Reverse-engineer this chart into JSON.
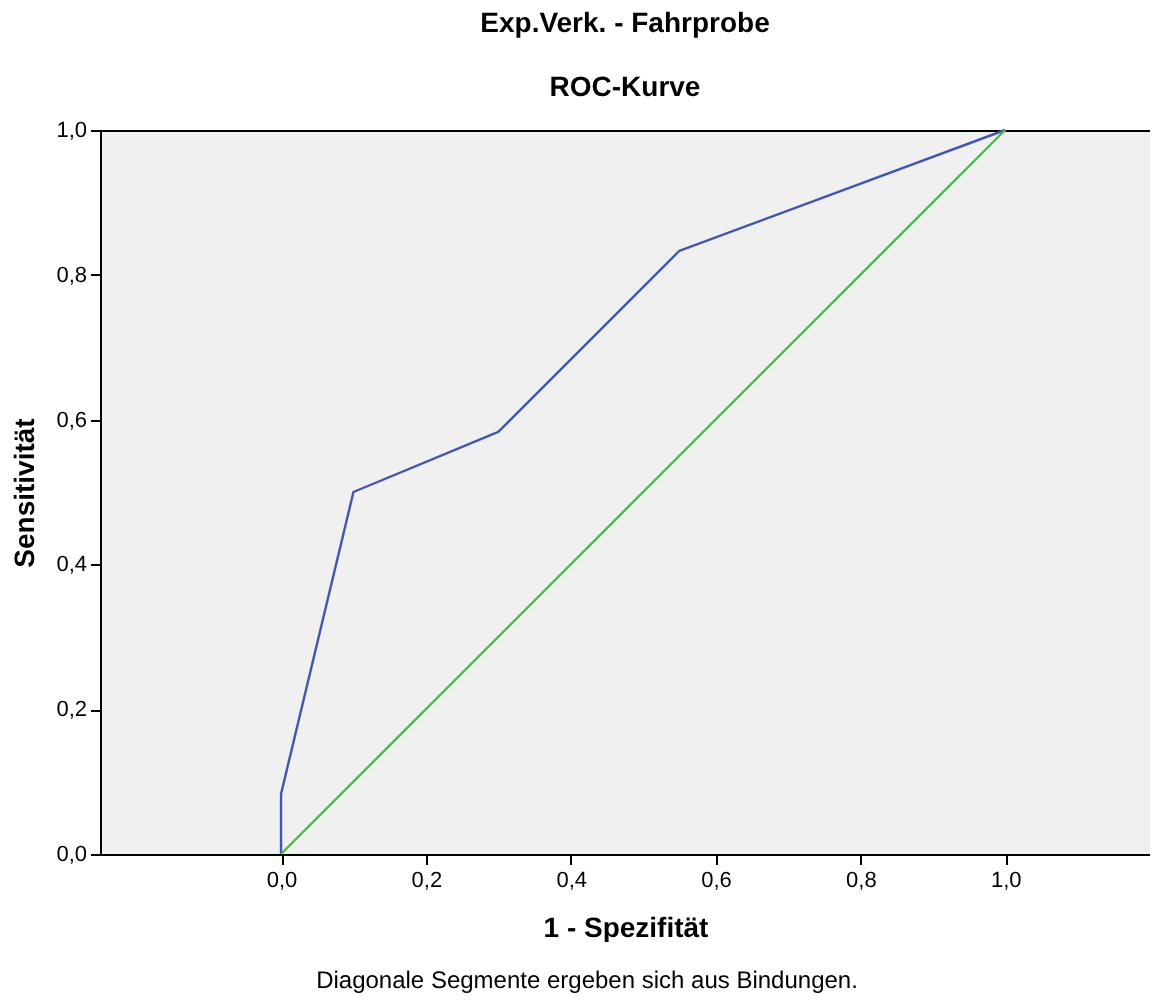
{
  "chart_data": {
    "type": "line",
    "title": "Exp.Verk. - Fahrprobe",
    "subtitle": "ROC-Kurve",
    "xlabel": "1 - Spezifität",
    "ylabel": "Sensitivität",
    "series": [
      {
        "color": "#4355b0",
        "x": [
          0,
          0,
          0.1,
          0.3,
          0.55,
          1
        ],
        "values": [
          0,
          0.083,
          0.5,
          0.583,
          0.833,
          1
        ]
      },
      {
        "color": "#3cc43c",
        "x": [
          0,
          1
        ],
        "values": [
          0,
          1
        ]
      }
    ],
    "xlim": [
      -0.25,
      1.2
    ],
    "ylim": [
      0,
      1
    ],
    "xticks": [
      {
        "value": 0,
        "label": "0,0"
      },
      {
        "value": 0.2,
        "label": "0,2"
      },
      {
        "value": 0.4,
        "label": "0,4"
      },
      {
        "value": 0.6,
        "label": "0,6"
      },
      {
        "value": 0.8,
        "label": "0,8"
      },
      {
        "value": 1,
        "label": "1,0"
      }
    ],
    "yticks": [
      {
        "value": 0,
        "label": "0,0"
      },
      {
        "value": 0.2,
        "label": "0,2"
      },
      {
        "value": 0.4,
        "label": "0,4"
      },
      {
        "value": 0.6,
        "label": "0,6"
      },
      {
        "value": 0.8,
        "label": "0,8"
      },
      {
        "value": 1,
        "label": "1,0"
      }
    ],
    "grid": false,
    "marker": "none",
    "line_style": "solid",
    "annotations": [
      "Diagonale Segmente ergeben sich aus Bindungen."
    ]
  }
}
